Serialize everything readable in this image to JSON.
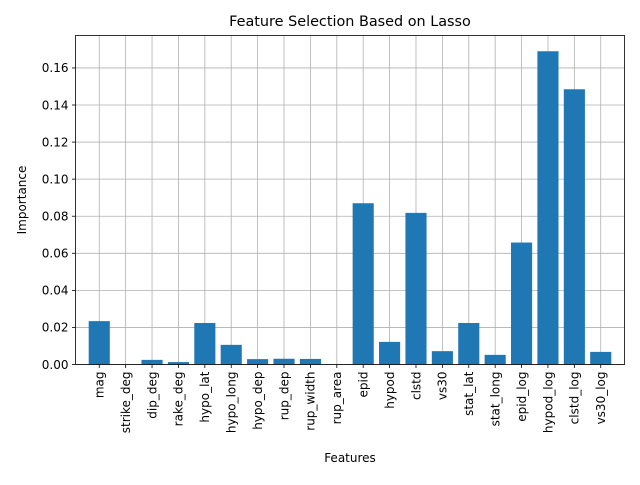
{
  "chart_data": {
    "type": "bar",
    "title": "Feature Selection Based on Lasso",
    "xlabel": "Features",
    "ylabel": "Importance",
    "categories": [
      "mag",
      "strike_deg",
      "dip_deg",
      "rake_deg",
      "hypo_lat",
      "hypo_long",
      "hypo_dep",
      "rup_dep",
      "rup_width",
      "rup_area",
      "epid",
      "hypod",
      "clstd",
      "vs30",
      "stat_lat",
      "stat_long",
      "epid_log",
      "hypod_log",
      "clstd_log",
      "vs30_log"
    ],
    "values": [
      0.0234,
      0.0,
      0.0025,
      0.0013,
      0.0224,
      0.0106,
      0.0029,
      0.0031,
      0.003,
      0.0,
      0.087,
      0.0122,
      0.0818,
      0.0072,
      0.0224,
      0.0052,
      0.0658,
      0.169,
      0.1485,
      0.0068
    ],
    "ylim": [
      0,
      0.1775
    ],
    "yticks": [
      0.0,
      0.02,
      0.04,
      0.06,
      0.08,
      0.1,
      0.12,
      0.14,
      0.16
    ],
    "ytick_labels": [
      "0.00",
      "0.02",
      "0.04",
      "0.06",
      "0.08",
      "0.10",
      "0.12",
      "0.14",
      "0.16"
    ],
    "grid": true,
    "bar_color": "#1f77b4"
  }
}
